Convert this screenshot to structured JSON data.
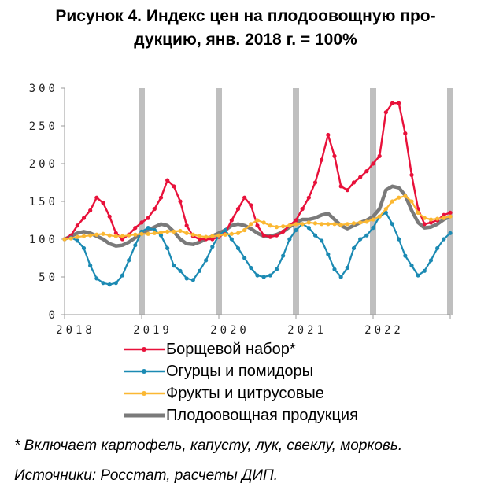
{
  "figure": {
    "title_line1": "Рисунок 4. Индекс цен на плодоовощную про-",
    "title_line2": "дукцию, янв. 2018 г. = 100%"
  },
  "footnote": "* Включает картофель, капусту, лук, свеклу, морковь.",
  "source": "Источники: Росстат, расчеты ДИП.",
  "chart_data": {
    "type": "line",
    "title": "Индекс цен на плодоовощную продукцию, янв. 2018 г. = 100%",
    "xlabel": "",
    "ylabel": "",
    "ylim": [
      0,
      300
    ],
    "yticks": [
      "300",
      "250",
      "200",
      "150",
      "100",
      "50",
      "0"
    ],
    "ytick_values": [
      300,
      250,
      200,
      150,
      100,
      50,
      0
    ],
    "xticks": [
      "2018",
      "2019",
      "2020",
      "2021",
      "2022"
    ],
    "x_start_month": 0,
    "x_months": 61,
    "shaded_year_boundaries": [
      12,
      24,
      36,
      48,
      60
    ],
    "series": [
      {
        "name": "Борщевой набор*",
        "color": "#e8113a",
        "width": 2.4,
        "markers": true,
        "values": [
          100,
          105,
          118,
          128,
          138,
          155,
          148,
          130,
          108,
          100,
          106,
          115,
          122,
          128,
          140,
          155,
          178,
          170,
          150,
          118,
          104,
          100,
          100,
          100,
          103,
          108,
          125,
          140,
          155,
          145,
          118,
          105,
          103,
          105,
          110,
          118,
          125,
          140,
          155,
          175,
          205,
          238,
          210,
          170,
          165,
          175,
          182,
          190,
          200,
          210,
          268,
          280,
          280,
          240,
          185,
          140,
          120,
          122,
          125,
          132,
          135
        ]
      },
      {
        "name": "Огурцы и помидоры",
        "color": "#1b8ab3",
        "width": 2.2,
        "markers": true,
        "values": [
          100,
          102,
          98,
          88,
          65,
          48,
          42,
          40,
          42,
          52,
          72,
          92,
          110,
          115,
          112,
          105,
          88,
          65,
          58,
          48,
          46,
          58,
          72,
          90,
          105,
          112,
          100,
          88,
          75,
          62,
          52,
          50,
          52,
          60,
          78,
          100,
          112,
          120,
          115,
          105,
          98,
          80,
          60,
          50,
          62,
          88,
          100,
          105,
          115,
          130,
          135,
          120,
          100,
          78,
          65,
          52,
          58,
          72,
          88,
          100,
          108
        ]
      },
      {
        "name": "Фрукты и цитрусовые",
        "color": "#fbb833",
        "width": 2.2,
        "markers": true,
        "values": [
          100,
          101,
          103,
          104,
          105,
          106,
          107,
          105,
          104,
          104,
          105,
          106,
          107,
          107,
          108,
          109,
          110,
          110,
          111,
          108,
          106,
          104,
          103,
          104,
          105,
          106,
          107,
          108,
          112,
          120,
          125,
          122,
          118,
          116,
          117,
          118,
          120,
          120,
          122,
          121,
          120,
          120,
          120,
          119,
          120,
          121,
          122,
          123,
          126,
          130,
          140,
          150,
          155,
          157,
          150,
          135,
          128,
          126,
          127,
          128,
          130
        ]
      },
      {
        "name": "Плодоовощная продукция",
        "color": "#7a7a7a",
        "width": 4.5,
        "markers": false,
        "values": [
          100,
          104,
          108,
          110,
          108,
          104,
          100,
          94,
          91,
          92,
          96,
          102,
          108,
          112,
          116,
          120,
          118,
          110,
          100,
          94,
          93,
          96,
          100,
          104,
          108,
          112,
          118,
          120,
          118,
          114,
          108,
          104,
          104,
          106,
          110,
          116,
          122,
          126,
          126,
          128,
          132,
          134,
          126,
          118,
          114,
          118,
          122,
          125,
          130,
          140,
          165,
          170,
          168,
          158,
          138,
          122,
          115,
          116,
          120,
          126,
          130
        ]
      }
    ]
  }
}
